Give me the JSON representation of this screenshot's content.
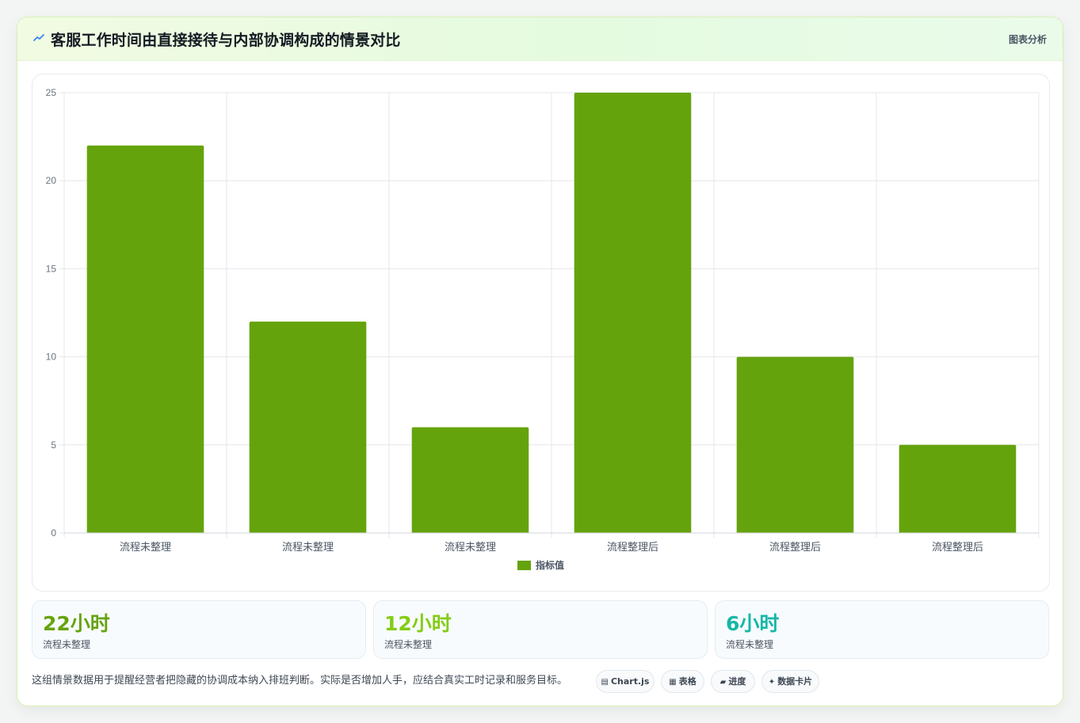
{
  "header": {
    "icon": "trend-line-icon",
    "title": "客服工作时间由直接接待与内部协调构成的情景对比",
    "tag": "图表分析"
  },
  "chart_data": {
    "type": "bar",
    "categories": [
      "流程未整理",
      "流程未整理",
      "流程未整理",
      "流程整理后",
      "流程整理后",
      "流程整理后"
    ],
    "series": [
      {
        "name": "指标值",
        "values": [
          22,
          12,
          6,
          25,
          10,
          5
        ],
        "color": "#65a30d"
      }
    ],
    "ylim": [
      0,
      25
    ],
    "yticks": [
      0,
      5,
      10,
      15,
      20,
      25
    ],
    "grid": true,
    "legend": "bottom",
    "colors": {
      "bar": "#65a30d",
      "grid": "#e5e7eb",
      "tick": "#6b7280"
    }
  },
  "stats": [
    {
      "value": "22小时",
      "label": "流程未整理",
      "color": "#65a30d"
    },
    {
      "value": "12小时",
      "label": "流程未整理",
      "color": "#84cc16"
    },
    {
      "value": "6小时",
      "label": "流程未整理",
      "color": "#14b8a6"
    }
  ],
  "footer": {
    "note": "这组情景数据用于提醒经营者把隐藏的协调成本纳入排班判断。实际是否增加人手，应结合真实工时记录和服务目标。",
    "chips": [
      {
        "icon": "chart-icon",
        "glyph": "▤",
        "label": "Chart.js"
      },
      {
        "icon": "table-icon",
        "glyph": "▦",
        "label": "表格"
      },
      {
        "icon": "progress-icon",
        "glyph": "▰",
        "label": "进度"
      },
      {
        "icon": "sparkle-icon",
        "glyph": "✦",
        "label": "数据卡片"
      }
    ]
  }
}
